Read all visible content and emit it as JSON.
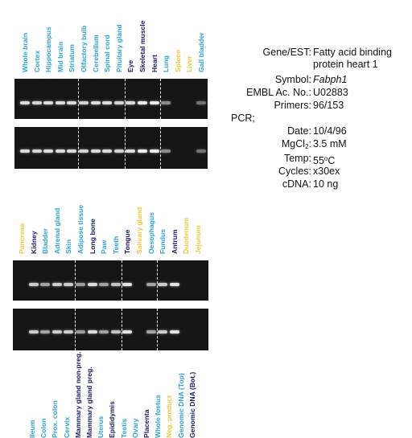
{
  "panels": [
    {
      "lanes": [
        {
          "label": "Whole brain",
          "color": "#2aa3d8",
          "band": 0.9
        },
        {
          "label": "Cortex",
          "color": "#2aa3d8",
          "band": 0.85
        },
        {
          "label": "Hippocampus",
          "color": "#2aa3d8",
          "band": 0.9
        },
        {
          "label": "Mid brain",
          "color": "#2aa3d8",
          "band": 0.9
        },
        {
          "label": "Striatum",
          "color": "#2aa3d8",
          "band": 0.9
        },
        {
          "label": "Olfactory bulb",
          "color": "#2aa3d8",
          "band": 0.85
        },
        {
          "label": "Cerebellum",
          "color": "#2aa3d8",
          "band": 0.9
        },
        {
          "label": "Spinal cord",
          "color": "#2aa3d8",
          "band": 0.9
        },
        {
          "label": "Pituitary gland",
          "color": "#2aa3d8",
          "band": 0.85
        },
        {
          "label": "Eye",
          "color": "#1a1a66",
          "band": 0.9
        },
        {
          "label": "Skeletal muscle",
          "color": "#1a1a66",
          "band": 1.0
        },
        {
          "label": "Heart",
          "color": "#1a1a66",
          "band": 1.0
        },
        {
          "label": "Lung",
          "color": "#2aa3d8",
          "band": 0.4
        },
        {
          "label": "Spleen",
          "color": "#f2c63a",
          "band": 0
        },
        {
          "label": "Liver",
          "color": "#f2c63a",
          "band": 0
        },
        {
          "label": "Gall bladder",
          "color": "#2aa3d8",
          "band": 0.25
        }
      ],
      "dividers_after": [
        4,
        8,
        11
      ]
    },
    {
      "lanes": [
        {
          "label": "Pancreas",
          "color": "#f2c63a",
          "band": 0
        },
        {
          "label": "Kidney",
          "color": "#1a1a66",
          "band": 0.8
        },
        {
          "label": "Bladder",
          "color": "#2aa3d8",
          "band": 0.55
        },
        {
          "label": "Adrenal gland",
          "color": "#2aa3d8",
          "band": 0.8
        },
        {
          "label": "Skin",
          "color": "#2aa3d8",
          "band": 0.8
        },
        {
          "label": "Adipose tissue",
          "color": "#2aa3d8",
          "band": 0.5
        },
        {
          "label": "Long bone",
          "color": "#1a1a66",
          "band": 0.9
        },
        {
          "label": "Paw",
          "color": "#2aa3d8",
          "band": 0.55
        },
        {
          "label": "Teeth",
          "color": "#2aa3d8",
          "band": 0.75
        },
        {
          "label": "Tongue",
          "color": "#1a1a66",
          "band": 0.95
        },
        {
          "label": "Salivary gland",
          "color": "#f2c63a",
          "band": 0
        },
        {
          "label": "Oesophagus",
          "color": "#2aa3d8",
          "band": 0.55
        },
        {
          "label": "Fundus",
          "color": "#2aa3d8",
          "band": 0.8
        },
        {
          "label": "Antrum",
          "color": "#1a1a66",
          "band": 0.95
        },
        {
          "label": "Duodenum",
          "color": "#f2c63a",
          "band": 0
        },
        {
          "label": "Jejunum",
          "color": "#f2c63a",
          "band": 0
        }
      ],
      "dividers_after": [
        4,
        8,
        11
      ]
    },
    {
      "lanes": [
        {
          "label": "Ileum",
          "color": "#2aa3d8"
        },
        {
          "label": "Colon",
          "color": "#2aa3d8"
        },
        {
          "label": "Prox. colon",
          "color": "#2aa3d8"
        },
        {
          "label": "Cervix",
          "color": "#2aa3d8"
        },
        {
          "label": "Mammary gland non-preg.",
          "color": "#1a1a66"
        },
        {
          "label": "Mammary gland preg.",
          "color": "#1a1a66"
        },
        {
          "label": "Uterus",
          "color": "#2aa3d8"
        },
        {
          "label": "Epididymis",
          "color": "#1a1a66"
        },
        {
          "label": "Testis",
          "color": "#2aa3d8"
        },
        {
          "label": "Ovary",
          "color": "#2aa3d8"
        },
        {
          "label": "Placenta",
          "color": "#1a1a66"
        },
        {
          "label": "Whole foetus",
          "color": "#2aa3d8"
        },
        {
          "label": "Neg. product",
          "color": "#f2c63a"
        },
        {
          "label": "Genomic DNA (Top)",
          "color": "#2aa3d8"
        },
        {
          "label": "Genomic DNA (Bot.)",
          "color": "#1a1a66"
        }
      ]
    }
  ],
  "meta": {
    "gene_label": "Gene/EST:",
    "gene_value": "Fatty acid binding protein heart 1",
    "symbol_label": "Symbol:",
    "symbol_value": "Fabph1",
    "embl_label": "EMBL Ac. No.:",
    "embl_value": "U02883",
    "primers_label": "Primers:",
    "primers_value": "96/153",
    "pcr_label": "PCR;",
    "date_label": "Date:",
    "date_value": "10/4/96",
    "mgcl_label_main": "MgCl",
    "mgcl_label_sub": "2",
    "mgcl_label_end": ":",
    "mgcl_value": "3.5 mM",
    "temp_label": "Temp:",
    "temp_value_num": "55",
    "temp_value_sup": "o",
    "temp_value_unit": "C",
    "cycles_label": "Cycles:",
    "cycles_value": "x30ex",
    "cdna_label": "cDNA:",
    "cdna_value": "10 ng"
  }
}
